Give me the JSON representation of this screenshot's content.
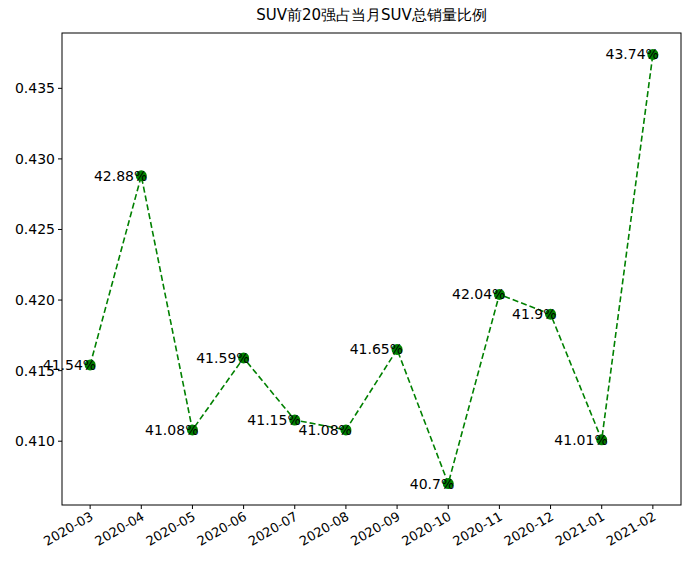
{
  "chart_data": {
    "type": "line",
    "title": "SUV前20强占当月SUV总销量比例",
    "categories": [
      "2020-03",
      "2020-04",
      "2020-05",
      "2020-06",
      "2020-07",
      "2020-08",
      "2020-09",
      "2020-10",
      "2020-11",
      "2020-12",
      "2021-01",
      "2021-02"
    ],
    "values": [
      0.4154,
      0.4288,
      0.4108,
      0.4159,
      0.4115,
      0.4108,
      0.4165,
      0.407,
      0.4204,
      0.419,
      0.4101,
      0.4374
    ],
    "value_labels": [
      "41.54%",
      "42.88%",
      "41.08%",
      "41.59%",
      "41.15%",
      "41.08%",
      "41.65%",
      "40.7%",
      "42.04%",
      "41.9%",
      "41.01%",
      "43.74%"
    ],
    "color": "#008000",
    "marker": "circle",
    "line_style": "dashed",
    "data_labels": true,
    "grid": false,
    "ylim": [
      0.40548,
      0.43892
    ],
    "yticks": [
      {
        "value": 0.41,
        "label": "0.410"
      },
      0.415,
      {
        "value": 0.42,
        "label": "0.420"
      },
      0.425,
      {
        "value": 0.43,
        "label": "0.430"
      },
      0.435
    ]
  }
}
